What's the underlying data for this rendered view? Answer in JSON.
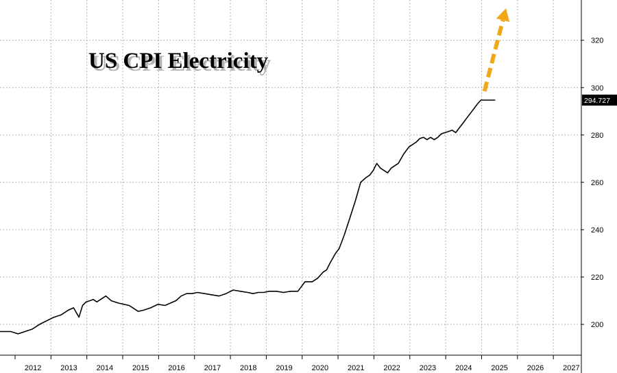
{
  "chart_data": {
    "type": "line",
    "title": "US CPI Electricity",
    "xlabel": "",
    "ylabel": "",
    "x_ticks": [
      "2012",
      "2013",
      "2014",
      "2015",
      "2016",
      "2017",
      "2018",
      "2019",
      "2020",
      "2021",
      "2022",
      "2023",
      "2024",
      "2025",
      "2026",
      "2027"
    ],
    "y_ticks": [
      200,
      220,
      240,
      260,
      280,
      300,
      320
    ],
    "xlim": [
      2011.5,
      2027.7
    ],
    "ylim": [
      187,
      337
    ],
    "grid": true,
    "line_color": "#000000",
    "arrow_color": "#f0a818",
    "last_value_label": "294.727",
    "series": [
      {
        "x": [
          2011.5,
          2011.8,
          2012.0,
          2012.2,
          2012.4,
          2012.6,
          2012.8,
          2013.0,
          2013.2,
          2013.4,
          2013.55,
          2013.7,
          2013.8,
          2013.9,
          2014.0,
          2014.1,
          2014.2,
          2014.3,
          2014.45,
          2014.6,
          2014.8,
          2014.95,
          2015.1,
          2015.2,
          2015.35,
          2015.5,
          2015.7,
          2015.9,
          2016.1,
          2016.25,
          2016.4,
          2016.55,
          2016.7,
          2016.85,
          2017.0,
          2017.2,
          2017.4,
          2017.6,
          2017.8,
          2018.0,
          2018.2,
          2018.4,
          2018.55,
          2018.7,
          2018.85,
          2019.0,
          2019.2,
          2019.4,
          2019.6,
          2019.8,
          2020.0,
          2020.2,
          2020.35,
          2020.5,
          2020.6,
          2020.7,
          2020.85,
          2020.95,
          2021.1,
          2021.25,
          2021.4,
          2021.55,
          2021.7,
          2021.8,
          2021.9,
          2022.0,
          2022.1,
          2022.2,
          2022.3,
          2022.4,
          2022.5,
          2022.6,
          2022.75,
          2022.9,
          2023.0,
          2023.1,
          2023.2,
          2023.3,
          2023.4,
          2023.5,
          2023.6,
          2023.7,
          2023.8,
          2023.9,
          2024.0,
          2024.1,
          2024.2,
          2024.3,
          2024.4,
          2024.5,
          2024.6,
          2024.7,
          2024.8,
          2024.9,
          2025.0,
          2025.15,
          2025.3
        ],
        "y": [
          197,
          197,
          196,
          197,
          198,
          200,
          201.5,
          203,
          204,
          206,
          207,
          203,
          208,
          209.5,
          210,
          210.5,
          209.5,
          210.5,
          212,
          210,
          209,
          208.5,
          208,
          207,
          205.5,
          206,
          207,
          208.5,
          208,
          209,
          210,
          212,
          213,
          213,
          213.5,
          213,
          212.5,
          212,
          213,
          214.5,
          214,
          213.5,
          213,
          213.5,
          213.5,
          214,
          214,
          213.5,
          214,
          214,
          218,
          218,
          219.5,
          222,
          223,
          226,
          230,
          232,
          238,
          245,
          252,
          260,
          262,
          263,
          265,
          268,
          266,
          265,
          264,
          266,
          267,
          268,
          272,
          275,
          276,
          277,
          278.5,
          279,
          278,
          279,
          278,
          279,
          280.5,
          281,
          281.5,
          282,
          281,
          283,
          285,
          287,
          289,
          291,
          293,
          294.727,
          294.727,
          294.727,
          294.727
        ]
      }
    ],
    "forecast_arrow": {
      "from": [
        2025.0,
        298.5
      ],
      "to": [
        2025.6,
        333.5
      ]
    }
  }
}
